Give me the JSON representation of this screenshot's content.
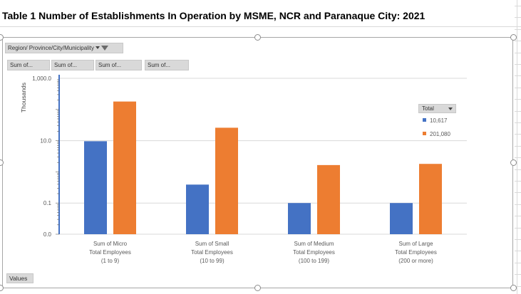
{
  "sheet": {
    "title": "Table 1 Number of Establishments In Operation by MSME, NCR and Paranaque City: 2021"
  },
  "pivot": {
    "filter_button": "Region/ Province/City/Municipality",
    "value_buttons": [
      "Sum of...",
      "Sum of...",
      "Sum of...",
      "Sum of..."
    ],
    "values_button": "Values",
    "legend_button": "Total"
  },
  "colors": {
    "series1": "#4472C4",
    "series2": "#ED7D31"
  },
  "chart_data": {
    "type": "bar",
    "scale": "log",
    "ylabel": "Thousands",
    "yticks": [
      {
        "value": 0.01,
        "label": "0.0"
      },
      {
        "value": 0.1,
        "label": "0.1"
      },
      {
        "value": 10,
        "label": "10.0"
      },
      {
        "value": 1000,
        "label": "1,000.0"
      }
    ],
    "ylim": [
      0.01,
      1000
    ],
    "legend_title": "Total",
    "legend_position": "right",
    "categories": [
      [
        "Sum of Micro",
        "Total Employees",
        "(1 to 9)"
      ],
      [
        "Sum of Small",
        "Total Employees",
        "(10 to 99)"
      ],
      [
        "Sum of Medium",
        "Total Employees",
        "(100 to 199)"
      ],
      [
        "Sum of Large",
        "Total Employees",
        "(200 or more)"
      ]
    ],
    "series": [
      {
        "name": "10,617",
        "values": [
          9.6,
          0.39,
          0.1,
          0.1
        ]
      },
      {
        "name": "201,080",
        "values": [
          180,
          26,
          1.65,
          1.8
        ]
      }
    ]
  }
}
